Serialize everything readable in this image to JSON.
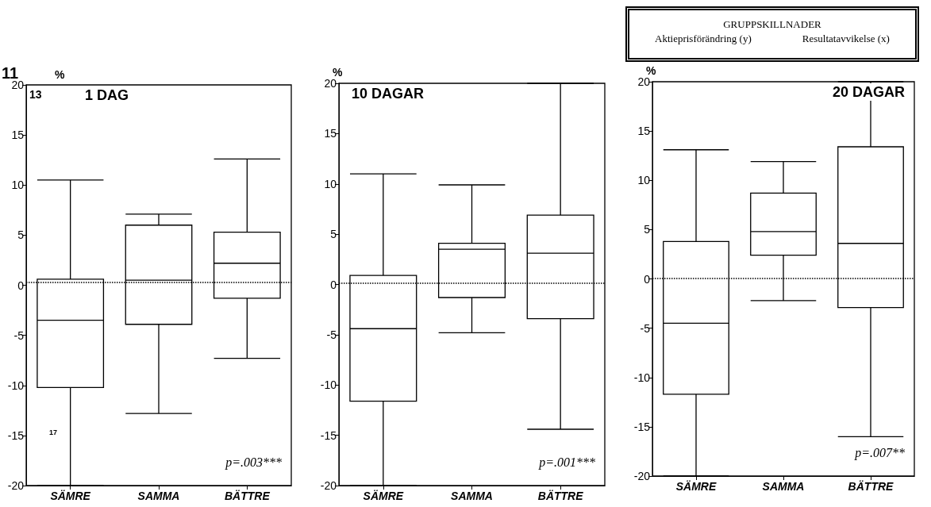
{
  "chart_data": [
    {
      "type": "box",
      "title": "1 DAG",
      "ylabel": "%",
      "categories": [
        "SÄMRE",
        "SAMMA",
        "BÄTTRE"
      ],
      "ylim": [
        -20,
        20
      ],
      "yticks": [
        -20,
        -15,
        -10,
        -5,
        0,
        5,
        10,
        15,
        20
      ],
      "grid": false,
      "boxes": [
        {
          "low": -20,
          "q1": -10.2,
          "median": -3.5,
          "q3": 0.6,
          "high": 10.5
        },
        {
          "low": -12.8,
          "q1": -3.9,
          "median": 0.5,
          "q3": 6.0,
          "high": 7.1
        },
        {
          "low": -7.3,
          "q1": -1.3,
          "median": 2.2,
          "q3": 5.3,
          "high": 12.6
        }
      ],
      "ref_lines": [
        {
          "axis": "y",
          "value": 0.3,
          "line_style": "dotted"
        }
      ],
      "annotations": [
        "p=.003***",
        "11",
        "13",
        "17"
      ]
    },
    {
      "type": "box",
      "title": "10 DAGAR",
      "ylabel": "%",
      "categories": [
        "SÄMRE",
        "SAMMA",
        "BÄTTRE"
      ],
      "ylim": [
        -20,
        20
      ],
      "yticks": [
        -20,
        -15,
        -10,
        -5,
        0,
        5,
        10,
        15,
        20
      ],
      "grid": false,
      "boxes": [
        {
          "low": -20,
          "q1": -11.6,
          "median": -4.4,
          "q3": 0.9,
          "high": 11.0
        },
        {
          "low": -4.8,
          "q1": -1.3,
          "median": 3.5,
          "q3": 4.1,
          "high": 9.9
        },
        {
          "low": -14.4,
          "q1": -3.4,
          "median": 3.1,
          "q3": 6.9,
          "high": 20
        }
      ],
      "ref_lines": [
        {
          "axis": "y",
          "value": 0.1,
          "line_style": "dotted"
        }
      ],
      "annotations": [
        "p=.001***"
      ]
    },
    {
      "type": "box",
      "title": "20 DAGAR",
      "ylabel": "%",
      "categories": [
        "SÄMRE",
        "SAMMA",
        "BÄTTRE"
      ],
      "ylim": [
        -20,
        20
      ],
      "yticks": [
        -20,
        -15,
        -10,
        -5,
        0,
        5,
        10,
        15,
        20
      ],
      "grid": false,
      "boxes": [
        {
          "low": -20,
          "q1": -11.7,
          "median": -4.5,
          "q3": 3.8,
          "high": 13.1
        },
        {
          "low": -2.2,
          "q1": 2.4,
          "median": 4.8,
          "q3": 8.7,
          "high": 11.9
        },
        {
          "low": -16.0,
          "q1": -2.9,
          "median": 3.6,
          "q3": 13.4,
          "high": 20
        }
      ],
      "ref_lines": [
        {
          "axis": "y",
          "value": 0.1,
          "line_style": "dotted"
        }
      ],
      "annotations": [
        "p=.007**"
      ]
    },
    {
      "type": "other",
      "title": "GRUPPSKILLNADER",
      "annotations": [
        "Aktieprisförändring (y)",
        "Resultatavvikelse (x)"
      ]
    }
  ]
}
